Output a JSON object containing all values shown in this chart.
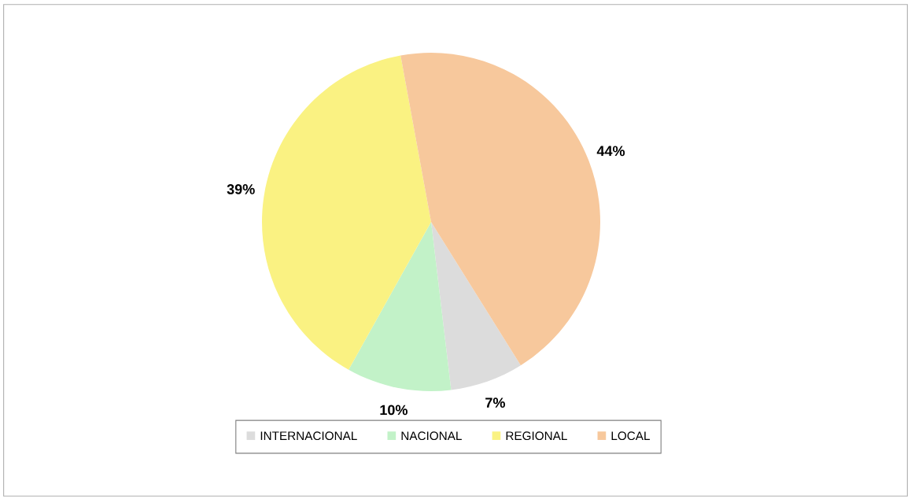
{
  "chart_data": {
    "type": "pie",
    "categories": [
      "INTERNACIONAL",
      "NACIONAL",
      "REGIONAL",
      "LOCAL"
    ],
    "values": [
      7,
      10,
      39,
      44
    ],
    "colors": [
      "#dcdcdc",
      "#c2f2c8",
      "#faf282",
      "#f7c89c"
    ],
    "value_labels": [
      "7%",
      "10%",
      "39%",
      "44%"
    ],
    "legend": "bottom"
  }
}
